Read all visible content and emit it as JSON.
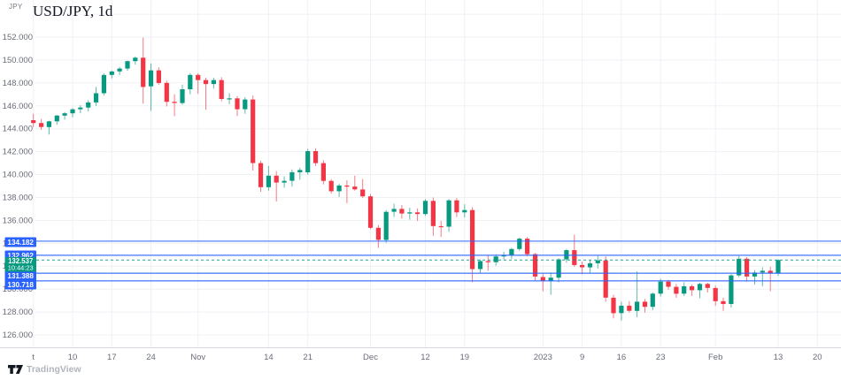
{
  "header": {
    "currency_label": "JPY",
    "title": "USD/JPY, 1d"
  },
  "footer": {
    "brand": "TradingView"
  },
  "colors": {
    "up": "#089981",
    "down": "#f23645",
    "line_blue": "#2962ff",
    "current_teal": "#089981",
    "grid": "#eff1f5",
    "axis_line": "#d6d9e0",
    "axis_text": "#6a6d78",
    "title_text": "#131722",
    "badge_text": "#ffffff",
    "brand_text": "#b2b5be",
    "logo_ink": "#131722"
  },
  "chart_data": {
    "type": "candlestick",
    "title": "USD/JPY, 1d",
    "symbol": "USD/JPY",
    "interval": "1d",
    "legend_currency": "JPY",
    "y_axis": {
      "grid_max": 154,
      "label_max": 152,
      "label_min": 126,
      "step": 2,
      "decimals": 3,
      "tick_labels": [
        "152.000",
        "150.000",
        "148.000",
        "146.000",
        "144.000",
        "142.000",
        "140.000",
        "138.000",
        "136.000",
        "134.000",
        "132.000",
        "130.000",
        "128.000",
        "126.000"
      ]
    },
    "x_ticks": [
      {
        "label": "t",
        "i": 0
      },
      {
        "label": "10",
        "i": 5
      },
      {
        "label": "17",
        "i": 10
      },
      {
        "label": "24",
        "i": 15
      },
      {
        "label": "Nov",
        "i": 21
      },
      {
        "label": "14",
        "i": 30
      },
      {
        "label": "21",
        "i": 35
      },
      {
        "label": "Dec",
        "i": 43
      },
      {
        "label": "12",
        "i": 50
      },
      {
        "label": "19",
        "i": 55
      },
      {
        "label": "2023",
        "i": 65
      },
      {
        "label": "9",
        "i": 70
      },
      {
        "label": "16",
        "i": 75
      },
      {
        "label": "23",
        "i": 80
      },
      {
        "label": "Feb",
        "i": 87
      },
      {
        "label": "13",
        "i": 95
      },
      {
        "label": "20",
        "i": 100
      }
    ],
    "ohlc": [
      [
        144.75,
        145.3,
        144.15,
        144.5
      ],
      [
        144.5,
        144.85,
        143.9,
        144.15
      ],
      [
        144.15,
        144.7,
        143.5,
        144.65
      ],
      [
        144.65,
        145.2,
        144.35,
        145.15
      ],
      [
        145.15,
        145.45,
        144.8,
        145.35
      ],
      [
        145.35,
        145.8,
        145.0,
        145.7
      ],
      [
        145.7,
        146.05,
        145.35,
        145.85
      ],
      [
        145.85,
        146.5,
        145.5,
        146.3
      ],
      [
        146.3,
        147.65,
        146.0,
        147.1
      ],
      [
        147.1,
        148.85,
        146.9,
        148.7
      ],
      [
        148.7,
        149.1,
        148.4,
        149.0
      ],
      [
        149.0,
        149.4,
        148.7,
        149.25
      ],
      [
        149.25,
        149.95,
        149.05,
        149.9
      ],
      [
        149.9,
        150.3,
        149.6,
        150.2
      ],
      [
        150.2,
        151.95,
        146.2,
        147.65
      ],
      [
        147.7,
        149.7,
        145.55,
        149.1
      ],
      [
        149.1,
        149.35,
        147.85,
        148.0
      ],
      [
        148.0,
        148.2,
        145.95,
        146.35
      ],
      [
        146.35,
        147.0,
        145.1,
        146.25
      ],
      [
        146.25,
        147.85,
        146.1,
        147.45
      ],
      [
        147.45,
        148.85,
        147.0,
        148.7
      ],
      [
        148.7,
        148.85,
        147.05,
        148.25
      ],
      [
        148.25,
        148.45,
        145.65,
        147.9
      ],
      [
        147.9,
        148.45,
        147.5,
        148.25
      ],
      [
        148.25,
        148.5,
        146.4,
        146.6
      ],
      [
        146.6,
        147.1,
        146.15,
        146.65
      ],
      [
        146.65,
        146.85,
        145.1,
        145.7
      ],
      [
        145.7,
        146.75,
        145.3,
        146.55
      ],
      [
        146.55,
        146.9,
        140.35,
        141.0
      ],
      [
        141.0,
        141.2,
        138.5,
        138.9
      ],
      [
        138.9,
        140.75,
        138.6,
        139.9
      ],
      [
        139.9,
        140.3,
        137.65,
        139.3
      ],
      [
        139.3,
        139.85,
        138.85,
        139.45
      ],
      [
        139.45,
        140.45,
        138.95,
        140.2
      ],
      [
        140.2,
        140.6,
        139.55,
        140.4
      ],
      [
        140.2,
        142.25,
        140.0,
        142.05
      ],
      [
        142.05,
        142.3,
        140.75,
        141.0
      ],
      [
        141.0,
        141.25,
        139.15,
        139.45
      ],
      [
        139.45,
        139.6,
        138.35,
        138.55
      ],
      [
        138.55,
        139.2,
        138.05,
        139.05
      ],
      [
        139.05,
        139.5,
        137.5,
        138.95
      ],
      [
        138.95,
        139.9,
        138.6,
        138.7
      ],
      [
        138.7,
        139.6,
        137.95,
        138.1
      ],
      [
        138.1,
        138.3,
        135.25,
        135.35
      ],
      [
        135.35,
        135.6,
        133.6,
        134.3
      ],
      [
        134.3,
        136.9,
        134.05,
        136.75
      ],
      [
        136.75,
        137.45,
        136.3,
        137.0
      ],
      [
        137.0,
        137.35,
        136.15,
        136.6
      ],
      [
        136.6,
        137.1,
        136.05,
        136.7
      ],
      [
        136.7,
        137.05,
        135.95,
        136.55
      ],
      [
        136.55,
        137.85,
        136.4,
        137.7
      ],
      [
        137.7,
        138.0,
        134.65,
        135.5
      ],
      [
        135.5,
        135.95,
        134.55,
        135.45
      ],
      [
        135.45,
        137.85,
        135.0,
        137.75
      ],
      [
        137.75,
        137.95,
        136.3,
        136.7
      ],
      [
        136.7,
        137.4,
        136.25,
        136.9
      ],
      [
        136.9,
        137.15,
        130.6,
        131.75
      ],
      [
        131.75,
        132.6,
        131.4,
        132.45
      ],
      [
        132.45,
        132.95,
        131.6,
        132.35
      ],
      [
        132.35,
        133.05,
        132.05,
        132.85
      ],
      [
        132.85,
        133.25,
        132.6,
        132.95
      ],
      [
        132.95,
        133.6,
        132.65,
        133.5
      ],
      [
        133.5,
        134.5,
        133.35,
        134.4
      ],
      [
        134.4,
        134.55,
        132.85,
        133.05
      ],
      [
        133.05,
        133.15,
        130.75,
        131.1
      ],
      [
        131.05,
        131.35,
        129.8,
        130.7
      ],
      [
        130.7,
        131.45,
        129.5,
        131.0
      ],
      [
        131.0,
        132.7,
        130.6,
        132.6
      ],
      [
        132.6,
        133.5,
        132.3,
        133.4
      ],
      [
        133.4,
        134.75,
        131.95,
        132.1
      ],
      [
        132.1,
        132.4,
        131.3,
        131.9
      ],
      [
        131.9,
        132.5,
        131.4,
        132.25
      ],
      [
        132.25,
        132.9,
        131.8,
        132.5
      ],
      [
        132.5,
        132.85,
        128.9,
        129.25
      ],
      [
        129.25,
        129.5,
        127.45,
        127.9
      ],
      [
        127.9,
        128.9,
        127.25,
        128.55
      ],
      [
        128.55,
        128.95,
        127.95,
        128.1
      ],
      [
        128.1,
        131.55,
        127.55,
        128.9
      ],
      [
        128.9,
        129.15,
        127.95,
        128.45
      ],
      [
        128.45,
        129.7,
        128.15,
        129.6
      ],
      [
        129.6,
        130.9,
        129.35,
        130.65
      ],
      [
        130.65,
        130.8,
        129.95,
        130.2
      ],
      [
        130.2,
        130.45,
        129.25,
        129.6
      ],
      [
        129.6,
        130.6,
        129.4,
        130.25
      ],
      [
        130.25,
        130.4,
        129.4,
        129.9
      ],
      [
        129.9,
        130.55,
        129.2,
        130.45
      ],
      [
        130.45,
        130.55,
        129.7,
        130.1
      ],
      [
        130.1,
        130.3,
        128.55,
        128.95
      ],
      [
        128.95,
        129.25,
        128.1,
        128.7
      ],
      [
        128.7,
        131.3,
        128.4,
        131.2
      ],
      [
        131.2,
        132.9,
        131.05,
        132.65
      ],
      [
        132.65,
        132.8,
        130.65,
        131.1
      ],
      [
        131.1,
        131.65,
        130.4,
        131.45
      ],
      [
        131.45,
        131.9,
        130.25,
        131.6
      ],
      [
        131.6,
        131.95,
        129.8,
        131.4
      ],
      [
        131.4,
        132.62,
        131.15,
        132.537
      ]
    ],
    "price_lines": [
      {
        "label": "134.182",
        "price": 134.182,
        "style": "solid"
      },
      {
        "label": "132.962",
        "price": 132.962,
        "style": "solid"
      },
      {
        "label": "131.388",
        "price": 131.388,
        "style": "solid"
      },
      {
        "label": "130.718",
        "price": 130.718,
        "style": "solid"
      }
    ],
    "current_price": {
      "label": "132.537",
      "price": 132.537,
      "countdown": "10:44:23",
      "style": "dashed"
    }
  }
}
